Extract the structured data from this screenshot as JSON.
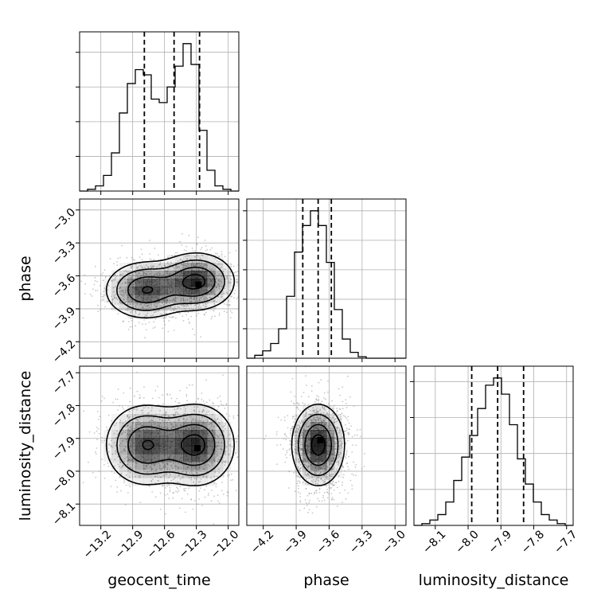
{
  "chart_data": {
    "type": "corner",
    "parameters": [
      "geocent_time",
      "phase",
      "luminosity_distance"
    ],
    "axes": {
      "geocent_time": {
        "label": "geocent_time",
        "range": [
          -13.4,
          -11.9
        ],
        "ticks": [
          -13.2,
          -12.9,
          -12.6,
          -12.3,
          -12.0
        ],
        "tick_labels": [
          "−13.2",
          "−12.9",
          "−12.6",
          "−12.3",
          "−12.0"
        ]
      },
      "phase": {
        "label": "phase",
        "range": [
          -4.35,
          -2.9
        ],
        "ticks": [
          -4.2,
          -3.9,
          -3.6,
          -3.3,
          -3.0
        ],
        "tick_labels": [
          "−4.2",
          "−3.9",
          "−3.6",
          "−3.3",
          "−3.0"
        ]
      },
      "luminosity_distance": {
        "label": "luminosity_distance",
        "range": [
          -8.165,
          -7.68
        ],
        "ticks": [
          -8.1,
          -8.0,
          -7.9,
          -7.8,
          -7.7
        ],
        "tick_labels": [
          "−8.1",
          "−8.0",
          "−7.9",
          "−7.8",
          "−7.7"
        ]
      }
    },
    "histograms": {
      "geocent_time": {
        "bin_edges": [
          -13.4,
          -13.325,
          -13.25,
          -13.175,
          -13.1,
          -13.025,
          -12.95,
          -12.875,
          -12.8,
          -12.725,
          -12.65,
          -12.575,
          -12.5,
          -12.425,
          -12.35,
          -12.275,
          -12.2,
          -12.125,
          -12.05,
          -11.975,
          -11.9
        ],
        "counts": [
          0,
          1,
          3,
          9,
          22,
          45,
          62,
          70,
          67,
          53,
          51,
          60,
          72,
          85,
          73,
          35,
          12,
          3,
          1,
          0
        ],
        "quantiles": [
          -12.79,
          -12.51,
          -12.27
        ]
      },
      "phase": {
        "bin_edges": [
          -4.35,
          -4.2775,
          -4.205,
          -4.1325,
          -4.06,
          -3.9875,
          -3.915,
          -3.8425,
          -3.77,
          -3.6975,
          -3.625,
          -3.5525,
          -3.48,
          -3.4075,
          -3.335,
          -3.2625,
          -3.19,
          -3.1175,
          -3.045,
          -2.9725,
          -2.9
        ],
        "counts": [
          0,
          2,
          5,
          10,
          20,
          42,
          72,
          90,
          100,
          90,
          65,
          33,
          13,
          4,
          1,
          0,
          0,
          0,
          0,
          0
        ],
        "quantiles": [
          -3.84,
          -3.7,
          -3.58
        ]
      },
      "luminosity_distance": {
        "bin_edges": [
          -8.165,
          -8.14075,
          -8.1165,
          -8.09225,
          -8.068,
          -8.04375,
          -8.0195,
          -7.99525,
          -7.971,
          -7.94675,
          -7.9225,
          -7.89825,
          -7.874,
          -7.84975,
          -7.8255,
          -7.80125,
          -7.777,
          -7.75275,
          -7.7285,
          -7.70425,
          -7.68
        ],
        "counts": [
          0,
          1,
          3,
          6,
          13,
          25,
          38,
          50,
          65,
          78,
          82,
          73,
          56,
          37,
          23,
          13,
          6,
          3,
          1,
          0
        ],
        "quantiles": [
          -7.989,
          -7.91,
          -7.831
        ]
      }
    },
    "pairs": [
      {
        "x": "geocent_time",
        "y": "phase",
        "modes": [
          {
            "x": -12.78,
            "y": -3.73,
            "sx": 0.19,
            "sy": 0.13,
            "w": 1.0
          },
          {
            "x": -12.3,
            "y": -3.65,
            "sx": 0.18,
            "sy": 0.13,
            "w": 1.1
          }
        ],
        "peak": {
          "x": -12.28,
          "y": -3.68
        }
      },
      {
        "x": "geocent_time",
        "y": "luminosity_distance",
        "modes": [
          {
            "x": -12.78,
            "y": -7.92,
            "sx": 0.19,
            "sy": 0.062,
            "w": 1.0
          },
          {
            "x": -12.3,
            "y": -7.92,
            "sx": 0.18,
            "sy": 0.062,
            "w": 1.1
          }
        ],
        "peak": {
          "x": -12.29,
          "y": -7.93
        }
      },
      {
        "x": "phase",
        "y": "luminosity_distance",
        "modes": [
          {
            "x": -3.7,
            "y": -7.92,
            "sx": 0.12,
            "sy": 0.062,
            "w": 1.0
          }
        ],
        "peak": {
          "x": -3.68,
          "y": -7.905
        }
      }
    ],
    "contour_levels_sigma": [
      0.5,
      1.0,
      1.5,
      2.0
    ],
    "grid": true,
    "colors": {
      "cells": "#000000",
      "scatter": "#9a9a9a",
      "lines": "#000000"
    }
  }
}
